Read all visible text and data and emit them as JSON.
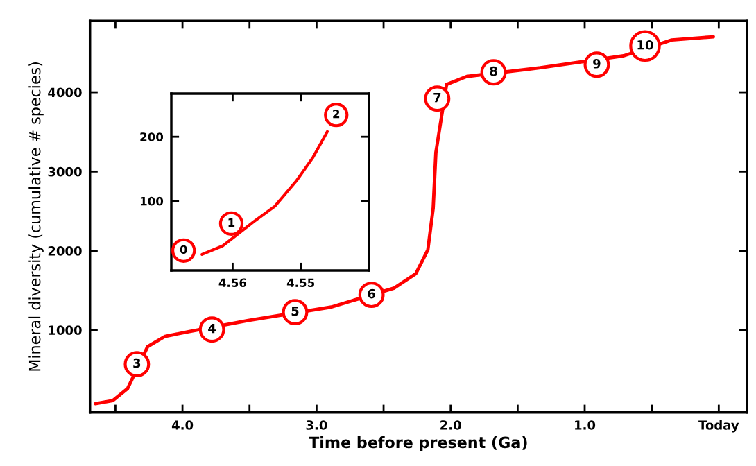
{
  "chart_data": [
    {
      "type": "line",
      "xlabel": "Time before present (Ga)",
      "ylabel": "Mineral diversity (cumulative # species)",
      "x": [
        4.65,
        4.52,
        4.41,
        4.26,
        4.13,
        3.95,
        3.51,
        2.89,
        2.42,
        2.26,
        2.17,
        2.13,
        2.11,
        2.03,
        1.88,
        1.33,
        0.71,
        0.35,
        0.04
      ],
      "series": [
        {
          "color": "#ff0000",
          "values": [
            70,
            110,
            260,
            790,
            920,
            980,
            1120,
            1290,
            1530,
            1710,
            2010,
            2540,
            3240,
            4100,
            4200,
            4310,
            4460,
            4660,
            4700
          ]
        }
      ],
      "xlim": [
        4.69,
        -0.21
      ],
      "ylim": [
        -40,
        4900
      ],
      "xticks": [
        {
          "value": 4.5,
          "label": null
        },
        {
          "value": 4.0,
          "label": "4.0"
        },
        {
          "value": 3.5,
          "label": null
        },
        {
          "value": 3.0,
          "label": "3.0"
        },
        {
          "value": 2.5,
          "label": null
        },
        {
          "value": 2.0,
          "label": "2.0"
        },
        {
          "value": 1.5,
          "label": null
        },
        {
          "value": 1.0,
          "label": "1.0"
        },
        {
          "value": 0.5,
          "label": null
        },
        {
          "value": 0,
          "label": "Today"
        }
      ],
      "yticks": [
        1000,
        2000,
        3000,
        4000
      ],
      "annotations": [
        {
          "text": "3",
          "x": 4.34,
          "y": 569
        },
        {
          "text": "4",
          "x": 3.78,
          "y": 1006
        },
        {
          "text": "5",
          "x": 3.16,
          "y": 1225
        },
        {
          "text": "6",
          "x": 2.59,
          "y": 1444
        },
        {
          "text": "7",
          "x": 2.1,
          "y": 3920
        },
        {
          "text": "8",
          "x": 1.68,
          "y": 4252
        },
        {
          "text": "9",
          "x": 0.91,
          "y": 4348
        },
        {
          "text": "10",
          "x": 0.55,
          "y": 4584
        }
      ],
      "marker": "none",
      "line_style": "solid",
      "grid": false,
      "legend": false
    },
    {
      "type": "line",
      "x": [
        4.5645,
        4.5615,
        4.5569,
        4.5538,
        4.5506,
        4.5482,
        4.5461
      ],
      "series": [
        {
          "color": "#ff0000",
          "values": [
            17,
            30,
            68,
            92,
            132,
            168,
            208
          ]
        }
      ],
      "xlim": [
        4.569,
        4.54
      ],
      "ylim": [
        -8,
        267
      ],
      "xticks": [
        4.56,
        4.55
      ],
      "yticks": [
        100,
        200
      ],
      "annotations": [
        {
          "text": "0",
          "x": 4.5672,
          "y": 23
        },
        {
          "text": "1",
          "x": 4.5602,
          "y": 65
        },
        {
          "text": "2",
          "x": 4.5448,
          "y": 234
        }
      ],
      "marker": "none",
      "line_style": "solid",
      "grid": false,
      "legend": false
    }
  ]
}
